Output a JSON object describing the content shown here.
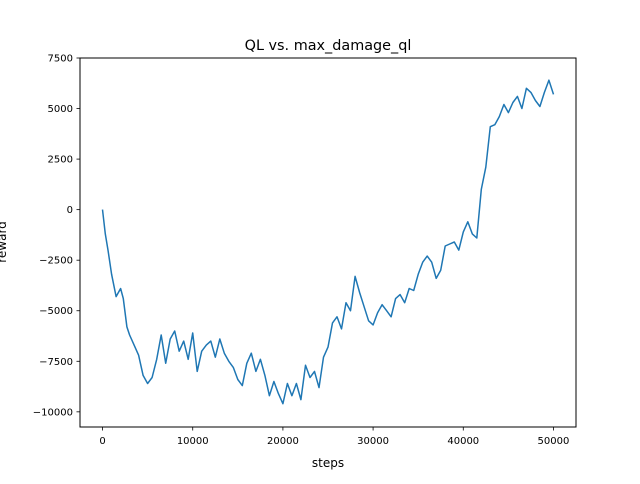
{
  "chart_data": {
    "type": "line",
    "title": "QL vs. max_damage_ql",
    "xlabel": "steps",
    "ylabel": "reward",
    "xlim": [
      -2500,
      52500
    ],
    "ylim": [
      -10750,
      7500
    ],
    "xticks": [
      0,
      10000,
      20000,
      30000,
      40000,
      50000
    ],
    "xtick_labels": [
      "0",
      "10000",
      "20000",
      "30000",
      "40000",
      "50000"
    ],
    "yticks": [
      -10000,
      -7500,
      -5000,
      -2500,
      0,
      2500,
      5000,
      7500
    ],
    "ytick_labels": [
      "−10000",
      "−7500",
      "−5000",
      "−2500",
      "0",
      "2500",
      "5000",
      "7500"
    ],
    "grid": false,
    "series": [
      {
        "color": "#1f77b4",
        "x": [
          0,
          300,
          600,
          1000,
          1500,
          2000,
          2300,
          2700,
          3000,
          3500,
          4000,
          4500,
          5000,
          5500,
          6000,
          6500,
          7000,
          7500,
          8000,
          8500,
          9000,
          9500,
          10000,
          10500,
          11000,
          11500,
          12000,
          12500,
          13000,
          13500,
          14000,
          14500,
          15000,
          15500,
          16000,
          16500,
          17000,
          17500,
          18000,
          18500,
          19000,
          19500,
          20000,
          20500,
          21000,
          21500,
          22000,
          22500,
          23000,
          23500,
          24000,
          24500,
          25000,
          25500,
          26000,
          26500,
          27000,
          27500,
          28000,
          28500,
          29000,
          29500,
          30000,
          30500,
          31000,
          31500,
          32000,
          32500,
          33000,
          33500,
          34000,
          34500,
          35000,
          35500,
          36000,
          36500,
          37000,
          37500,
          38000,
          38500,
          39000,
          39500,
          40000,
          40500,
          41000,
          41500,
          42000,
          42500,
          43000,
          43500,
          44000,
          44500,
          45000,
          45500,
          46000,
          46500,
          47000,
          47500,
          48000,
          48500,
          49000,
          49500,
          50000
        ],
        "y": [
          0,
          -1200,
          -2000,
          -3200,
          -4300,
          -3900,
          -4400,
          -5800,
          -6200,
          -6700,
          -7200,
          -8200,
          -8600,
          -8300,
          -7400,
          -6200,
          -7600,
          -6400,
          -6000,
          -7000,
          -6500,
          -7400,
          -6100,
          -8000,
          -7000,
          -6700,
          -6500,
          -7300,
          -6400,
          -7100,
          -7500,
          -7800,
          -8400,
          -8700,
          -7600,
          -7100,
          -8000,
          -7400,
          -8200,
          -9200,
          -8500,
          -9100,
          -9600,
          -8600,
          -9200,
          -8600,
          -9400,
          -7700,
          -8300,
          -8000,
          -8800,
          -7300,
          -6800,
          -5600,
          -5300,
          -5900,
          -4600,
          -5000,
          -3300,
          -4100,
          -4800,
          -5500,
          -5700,
          -5100,
          -4700,
          -5000,
          -5300,
          -4400,
          -4200,
          -4600,
          -3900,
          -4000,
          -3200,
          -2600,
          -2300,
          -2600,
          -3400,
          -3000,
          -1800,
          -1700,
          -1600,
          -2000,
          -1100,
          -600,
          -1200,
          -1400,
          1000,
          2100,
          4100,
          4200,
          4600,
          5200,
          4800,
          5300,
          5600,
          5000,
          6000,
          5800,
          5400,
          5100,
          5800,
          6400,
          5700
        ]
      }
    ]
  }
}
